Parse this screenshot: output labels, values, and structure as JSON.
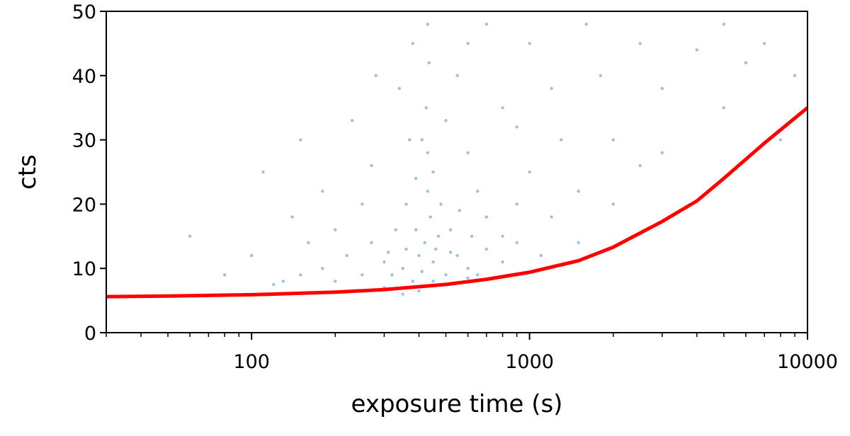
{
  "chart_data": {
    "type": "scatter",
    "xlabel": "exposure time (s)",
    "ylabel": "cts",
    "xscale": "log",
    "xlim": [
      30,
      10000
    ],
    "xticks": [
      100,
      1000,
      10000
    ],
    "xminorticks": [
      30,
      40,
      50,
      60,
      70,
      80,
      90,
      200,
      300,
      400,
      500,
      600,
      700,
      800,
      900,
      2000,
      3000,
      4000,
      5000,
      6000,
      7000,
      8000,
      9000
    ],
    "ylim": [
      0,
      50
    ],
    "yticks": [
      0,
      10,
      20,
      30,
      40,
      50
    ],
    "series": [
      {
        "type": "scatter",
        "color": "#1f77b4",
        "x": [
          350,
          400,
          450,
          420,
          500,
          380,
          320,
          300,
          550,
          600,
          470,
          440,
          430,
          430,
          425,
          435,
          430,
          410,
          450,
          480,
          520,
          250,
          200,
          180,
          150,
          130,
          120,
          220,
          270,
          330,
          360,
          390,
          370,
          340,
          380,
          500,
          550,
          600,
          650,
          700,
          800,
          900,
          1000,
          1200,
          1500,
          2000,
          2500,
          3000,
          4000,
          5000,
          7000,
          9000,
          1100,
          800,
          700,
          650,
          900,
          1300,
          1800,
          600,
          700,
          250,
          200,
          160,
          100,
          80,
          60,
          110,
          150,
          280,
          800,
          1000,
          1500,
          2000,
          3000,
          300,
          400,
          500,
          350,
          450,
          600,
          1600,
          2500,
          5000,
          8000,
          6000,
          1200,
          900,
          270,
          230,
          180,
          140,
          520,
          460,
          410,
          390,
          560,
          620,
          360,
          310
        ],
        "values": [
          10,
          12,
          11,
          14,
          9,
          8,
          9,
          11,
          12,
          10,
          15,
          18,
          22,
          28,
          35,
          42,
          48,
          30,
          25,
          20,
          16,
          9,
          8,
          10,
          9,
          8,
          7.5,
          12,
          14,
          16,
          20,
          24,
          30,
          38,
          45,
          33,
          40,
          28,
          22,
          18,
          15,
          20,
          25,
          18,
          22,
          30,
          26,
          38,
          44,
          35,
          45,
          40,
          12,
          11,
          13,
          9,
          14,
          30,
          40,
          45,
          48,
          20,
          16,
          14,
          12,
          9,
          15,
          25,
          30,
          40,
          35,
          45,
          14,
          20,
          28,
          7,
          6.5,
          7.5,
          6,
          8,
          8.5,
          48,
          45,
          48,
          30,
          42,
          38,
          32,
          26,
          33,
          22,
          18,
          12.5,
          13,
          9.5,
          16,
          19,
          15,
          13,
          12.5
        ]
      },
      {
        "type": "line",
        "color": "#ff0000",
        "x": [
          30,
          50,
          100,
          200,
          300,
          500,
          700,
          1000,
          1500,
          2000,
          3000,
          4000,
          5000,
          7000,
          10000
        ],
        "values": [
          5.6,
          5.7,
          5.9,
          6.3,
          6.7,
          7.5,
          8.3,
          9.4,
          11.2,
          13.3,
          17.3,
          20.5,
          24,
          29.5,
          35
        ]
      }
    ]
  }
}
